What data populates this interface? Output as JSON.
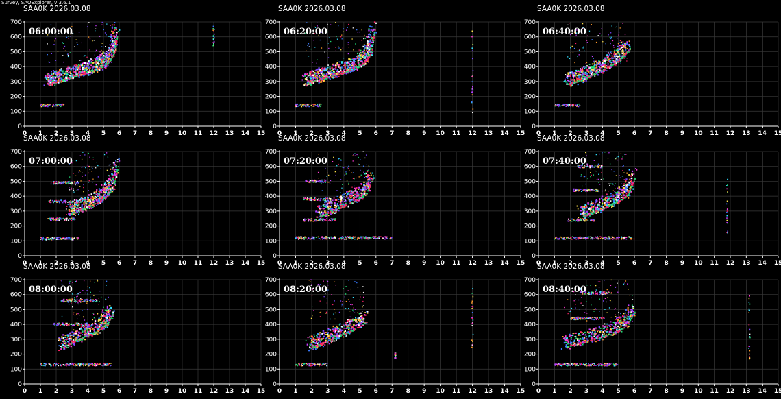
{
  "app_title": "Survey, SAOExplorer, v 3.6.1",
  "colors": {
    "background": "#000000",
    "grid": "#3a3a3a",
    "axis": "#ffffff",
    "text": "#ffffff"
  },
  "chart_data": [
    {
      "type": "scatter",
      "title": "SAA0K 2026.03.08",
      "timestamp": "06:00:00",
      "xlim": [
        0,
        15
      ],
      "ylim": [
        0,
        700
      ],
      "xticks": [
        0,
        1,
        2,
        3,
        4,
        5,
        6,
        7,
        8,
        9,
        10,
        11,
        12,
        13,
        14,
        15
      ],
      "yticks": [
        0,
        100,
        200,
        300,
        400,
        500,
        600,
        700
      ],
      "grid": true,
      "traces": [
        {
          "x": [
            1.4,
            1.7,
            2.1,
            2.6,
            3.1,
            3.6,
            4.0,
            4.5,
            5.0,
            5.3,
            5.6,
            5.8
          ],
          "y": [
            280,
            290,
            305,
            320,
            335,
            350,
            365,
            385,
            410,
            440,
            500,
            640
          ]
        }
      ],
      "layers": [
        {
          "x": [
            1.0,
            2.5
          ],
          "y": 140
        }
      ],
      "spikes": [
        {
          "x": 12.0,
          "y": [
            540,
            680
          ]
        }
      ]
    },
    {
      "type": "scatter",
      "title": "SAA0K 2026.03.08",
      "timestamp": "06:20:00",
      "xlim": [
        0,
        15
      ],
      "ylim": [
        0,
        700
      ],
      "xticks": [
        0,
        1,
        2,
        3,
        4,
        5,
        6,
        7,
        8,
        9,
        10,
        11,
        12,
        13,
        14,
        15
      ],
      "yticks": [
        0,
        100,
        200,
        300,
        400,
        500,
        600,
        700
      ],
      "grid": true,
      "traces": [
        {
          "x": [
            1.6,
            2.0,
            2.5,
            3.0,
            3.5,
            4.0,
            4.5,
            5.0,
            5.3,
            5.6,
            5.8
          ],
          "y": [
            285,
            300,
            315,
            330,
            345,
            365,
            385,
            410,
            440,
            500,
            650
          ]
        }
      ],
      "layers": [
        {
          "x": [
            1.0,
            2.6
          ],
          "y": 140
        }
      ],
      "spikes": [
        {
          "x": 12.0,
          "y": [
            90,
            670
          ]
        }
      ]
    },
    {
      "type": "scatter",
      "title": "SAA0K 2026.03.08",
      "timestamp": "06:40:00",
      "xlim": [
        0,
        15
      ],
      "ylim": [
        0,
        700
      ],
      "xticks": [
        0,
        1,
        2,
        3,
        4,
        5,
        6,
        7,
        8,
        9,
        10,
        11,
        12,
        13,
        14,
        15
      ],
      "yticks": [
        0,
        100,
        200,
        300,
        400,
        500,
        600,
        700
      ],
      "grid": true,
      "traces": [
        {
          "x": [
            1.8,
            2.3,
            2.8,
            3.3,
            3.8,
            4.3,
            4.8,
            5.2,
            5.6
          ],
          "y": [
            280,
            300,
            320,
            345,
            370,
            400,
            430,
            470,
            520
          ]
        }
      ],
      "layers": [
        {
          "x": [
            1.0,
            2.6
          ],
          "y": 140
        }
      ],
      "spikes": []
    },
    {
      "type": "scatter",
      "title": "SAA0K 2026.03.08",
      "timestamp": "07:00:00",
      "xlim": [
        0,
        15
      ],
      "ylim": [
        0,
        700
      ],
      "xticks": [
        0,
        1,
        2,
        3,
        4,
        5,
        6,
        7,
        8,
        9,
        10,
        11,
        12,
        13,
        14,
        15
      ],
      "yticks": [
        0,
        100,
        200,
        300,
        400,
        500,
        600,
        700
      ],
      "grid": true,
      "traces": [
        {
          "x": [
            2.8,
            3.3,
            3.8,
            4.3,
            4.8,
            5.2,
            5.5,
            5.8
          ],
          "y": [
            280,
            300,
            320,
            345,
            375,
            410,
            460,
            600
          ]
        }
      ],
      "layers": [
        {
          "x": [
            1.0,
            3.5
          ],
          "y": 115
        },
        {
          "x": 1.4,
          "x2": 3.2,
          "y": 245
        },
        {
          "x": 1.5,
          "x2": 3.6,
          "y": 365
        },
        {
          "x": 1.6,
          "x2": 3.4,
          "y": 490
        }
      ],
      "spikes": []
    },
    {
      "type": "scatter",
      "title": "SAA0K 2026.03.08",
      "timestamp": "07:20:00",
      "xlim": [
        0,
        15
      ],
      "ylim": [
        0,
        700
      ],
      "xticks": [
        0,
        1,
        2,
        3,
        4,
        5,
        6,
        7,
        8,
        9,
        10,
        11,
        12,
        13,
        14,
        15
      ],
      "yticks": [
        0,
        100,
        200,
        300,
        400,
        500,
        600,
        700
      ],
      "grid": true,
      "traces": [
        {
          "x": [
            2.4,
            3.0,
            3.6,
            4.2,
            4.8,
            5.3,
            5.7
          ],
          "y": [
            260,
            290,
            320,
            350,
            380,
            420,
            520
          ]
        }
      ],
      "layers": [
        {
          "x": [
            1.0,
            7.0
          ],
          "y": 120
        },
        {
          "x": 1.5,
          "x2": 3.5,
          "y": 240
        },
        {
          "x": 1.5,
          "x2": 3.2,
          "y": 380
        },
        {
          "x": 1.6,
          "x2": 3.0,
          "y": 500
        }
      ],
      "spikes": []
    },
    {
      "type": "scatter",
      "title": "SAA0K 2026.03.08",
      "timestamp": "07:40:00",
      "xlim": [
        0,
        15
      ],
      "ylim": [
        0,
        700
      ],
      "xticks": [
        0,
        1,
        2,
        3,
        4,
        5,
        6,
        7,
        8,
        9,
        10,
        11,
        12,
        13,
        14,
        15
      ],
      "yticks": [
        0,
        100,
        200,
        300,
        400,
        500,
        600,
        700
      ],
      "grid": true,
      "traces": [
        {
          "x": [
            2.6,
            3.2,
            3.8,
            4.4,
            5.0,
            5.5,
            5.9
          ],
          "y": [
            260,
            285,
            310,
            340,
            370,
            410,
            520
          ]
        }
      ],
      "layers": [
        {
          "x": [
            1.0,
            6.0
          ],
          "y": 120
        },
        {
          "x": 1.8,
          "x2": 3.5,
          "y": 240
        },
        {
          "x": 2.2,
          "x2": 3.8,
          "y": 440
        },
        {
          "x": 2.4,
          "x2": 4.0,
          "y": 600
        }
      ],
      "spikes": [
        {
          "x": 11.8,
          "y": [
            130,
            570
          ]
        }
      ]
    },
    {
      "type": "scatter",
      "title": "SAA0K 2026.03.08",
      "timestamp": "08:00:00",
      "xlim": [
        0,
        15
      ],
      "ylim": [
        0,
        700
      ],
      "xticks": [
        0,
        1,
        2,
        3,
        4,
        5,
        6,
        7,
        8,
        9,
        10,
        11,
        12,
        13,
        14,
        15
      ],
      "yticks": [
        0,
        100,
        200,
        300,
        400,
        500,
        600,
        700
      ],
      "grid": true,
      "traces": [
        {
          "x": [
            2.2,
            2.8,
            3.4,
            4.0,
            4.6,
            5.1,
            5.5
          ],
          "y": [
            240,
            270,
            300,
            330,
            360,
            400,
            470
          ]
        }
      ],
      "layers": [
        {
          "x": [
            1.0,
            5.5
          ],
          "y": 130
        },
        {
          "x": 1.8,
          "x2": 4.0,
          "y": 400
        },
        {
          "x": 2.2,
          "x2": 4.6,
          "y": 560
        }
      ],
      "spikes": []
    },
    {
      "type": "scatter",
      "title": "SAA0K 2026.03.08",
      "timestamp": "08:20:00",
      "xlim": [
        0,
        15
      ],
      "ylim": [
        0,
        700
      ],
      "xticks": [
        0,
        1,
        2,
        3,
        4,
        5,
        6,
        7,
        8,
        9,
        10,
        11,
        12,
        13,
        14,
        15
      ],
      "yticks": [
        0,
        100,
        200,
        300,
        400,
        500,
        600,
        700
      ],
      "grid": true,
      "traces": [
        {
          "x": [
            1.8,
            2.4,
            3.0,
            3.6,
            4.2,
            4.8,
            5.3
          ],
          "y": [
            240,
            265,
            290,
            320,
            350,
            380,
            420
          ]
        }
      ],
      "layers": [
        {
          "x": [
            1.0,
            3.0
          ],
          "y": 130
        }
      ],
      "spikes": [
        {
          "x": 12.0,
          "y": [
            180,
            650
          ]
        },
        {
          "x": 7.2,
          "y": [
            170,
            210
          ]
        }
      ]
    },
    {
      "type": "scatter",
      "title": "SAA0K 2026.03.08",
      "timestamp": "08:40:00",
      "xlim": [
        0,
        15
      ],
      "ylim": [
        0,
        700
      ],
      "xticks": [
        0,
        1,
        2,
        3,
        4,
        5,
        6,
        7,
        8,
        9,
        10,
        11,
        12,
        13,
        14,
        15
      ],
      "yticks": [
        0,
        100,
        200,
        300,
        400,
        500,
        600,
        700
      ],
      "grid": true,
      "traces": [
        {
          "x": [
            1.6,
            2.4,
            3.2,
            4.0,
            4.8,
            5.4,
            5.9
          ],
          "y": [
            250,
            270,
            295,
            320,
            350,
            390,
            480
          ]
        }
      ],
      "layers": [
        {
          "x": [
            1.0,
            5.0
          ],
          "y": 130
        },
        {
          "x": 2.0,
          "x2": 4.2,
          "y": 440
        },
        {
          "x": 2.6,
          "x2": 4.6,
          "y": 610
        }
      ],
      "spikes": [
        {
          "x": 13.2,
          "y": [
            150,
            620
          ]
        }
      ]
    }
  ]
}
